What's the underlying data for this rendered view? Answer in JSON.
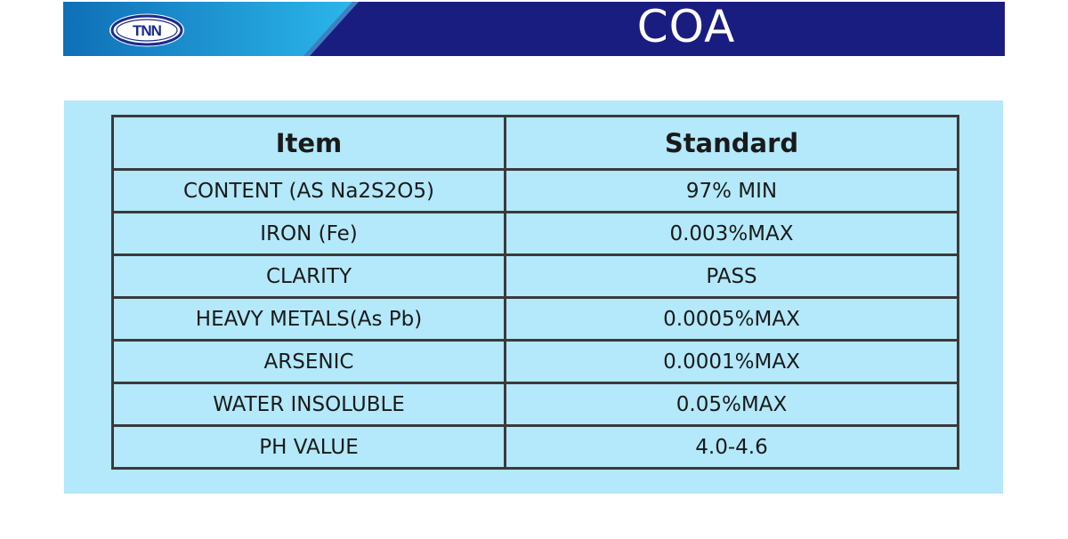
{
  "header": {
    "logo_text": "TNN",
    "title": "COA",
    "colors": {
      "left_gradient_start": "#0f6fb6",
      "left_gradient_end": "#28b4e8",
      "right_navy": "#1a1d80"
    },
    "logo_icon": "tnn-oval-logo"
  },
  "table": {
    "headers": {
      "item": "Item",
      "standard": "Standard"
    },
    "rows": [
      {
        "item": "CONTENT (AS Na2S2O5)",
        "standard": "97% MIN"
      },
      {
        "item": "IRON (Fe)",
        "standard": "0.003%MAX"
      },
      {
        "item": "CLARITY",
        "standard": "PASS"
      },
      {
        "item": "HEAVY METALS(As Pb)",
        "standard": "0.0005%MAX"
      },
      {
        "item": "ARSENIC",
        "standard": "0.0001%MAX"
      },
      {
        "item": "WATER INSOLUBLE",
        "standard": "0.05%MAX"
      },
      {
        "item": "PH VALUE",
        "standard": "4.0-4.6"
      }
    ],
    "colors": {
      "panel_background": "#b3e9fa",
      "border": "#3a3a3a"
    }
  }
}
